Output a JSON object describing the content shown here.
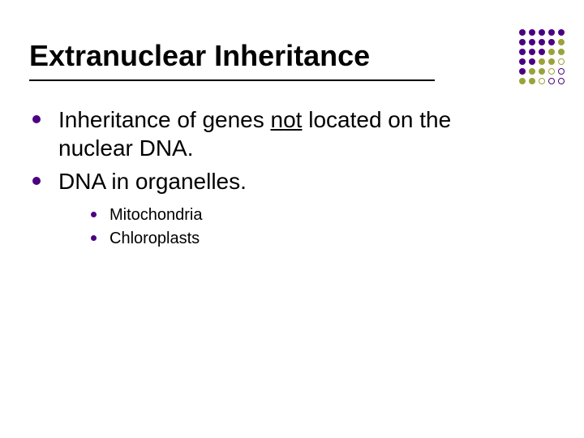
{
  "title": "Extranuclear Inheritance",
  "bullets": {
    "l1a_pre": "Inheritance of genes ",
    "l1a_u": "not",
    "l1a_post": " located on the nuclear DNA.",
    "l1b": "DNA  in organelles.",
    "s1": "Mitochondria",
    "s2": "Chloroplasts"
  },
  "colors": {
    "bullet1": "#4b0082",
    "bullet2": "#4b0082",
    "dot_purple_fill": "#4b0082",
    "dot_olive_fill": "#9aa33a",
    "dot_olive_ring": "#9aa33a",
    "dot_purple_ring": "#4b0082"
  },
  "decor_rows": [
    [
      "pf",
      "pf",
      "pf",
      "pf",
      "pf"
    ],
    [
      "pf",
      "pf",
      "pf",
      "pf",
      "of"
    ],
    [
      "pf",
      "pf",
      "pf",
      "of",
      "of"
    ],
    [
      "pf",
      "pf",
      "of",
      "of",
      "or"
    ],
    [
      "pf",
      "of",
      "of",
      "or",
      "pr"
    ],
    [
      "of",
      "of",
      "or",
      "pr",
      "pr"
    ]
  ]
}
